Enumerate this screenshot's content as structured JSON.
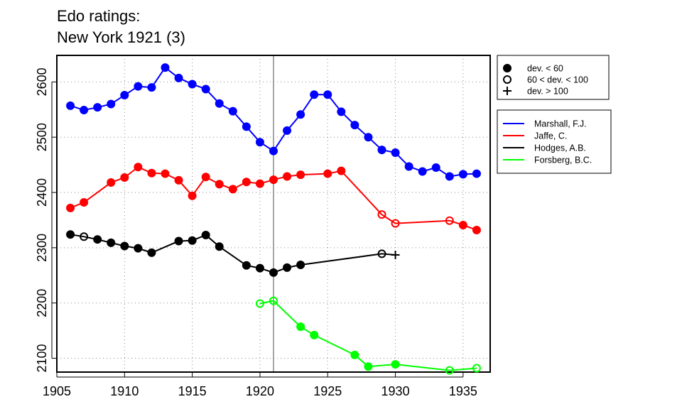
{
  "chart_data": {
    "type": "line",
    "title_line1": "Edo ratings:",
    "title_line2": "New York 1921 (3)",
    "xlabel": "",
    "ylabel": "",
    "xlim": [
      1905,
      1937
    ],
    "ylim": [
      2075,
      2648
    ],
    "x_ticks": [
      1905,
      1910,
      1915,
      1920,
      1925,
      1930,
      1935
    ],
    "y_ticks": [
      2100,
      2200,
      2300,
      2400,
      2500,
      2600
    ],
    "grid": "dotted",
    "reference_line_x": 1921,
    "marker_legend": [
      {
        "marker": "filled",
        "label": "dev. < 60"
      },
      {
        "marker": "open",
        "label": "60 < dev. < 100"
      },
      {
        "marker": "plus",
        "label": "dev. > 100"
      }
    ],
    "series": [
      {
        "name": "Marshall, F.J.",
        "color": "#0000ff",
        "points": [
          {
            "x": 1906,
            "y": 2557,
            "m": "filled"
          },
          {
            "x": 1907,
            "y": 2549,
            "m": "filled"
          },
          {
            "x": 1908,
            "y": 2554,
            "m": "filled"
          },
          {
            "x": 1909,
            "y": 2560,
            "m": "filled"
          },
          {
            "x": 1910,
            "y": 2576,
            "m": "filled"
          },
          {
            "x": 1911,
            "y": 2592,
            "m": "filled"
          },
          {
            "x": 1912,
            "y": 2590,
            "m": "filled"
          },
          {
            "x": 1913,
            "y": 2626,
            "m": "filled"
          },
          {
            "x": 1914,
            "y": 2607,
            "m": "filled"
          },
          {
            "x": 1915,
            "y": 2596,
            "m": "filled"
          },
          {
            "x": 1916,
            "y": 2587,
            "m": "filled"
          },
          {
            "x": 1917,
            "y": 2561,
            "m": "filled"
          },
          {
            "x": 1918,
            "y": 2547,
            "m": "filled"
          },
          {
            "x": 1919,
            "y": 2519,
            "m": "filled"
          },
          {
            "x": 1920,
            "y": 2491,
            "m": "filled"
          },
          {
            "x": 1921,
            "y": 2475,
            "m": "filled"
          },
          {
            "x": 1922,
            "y": 2512,
            "m": "filled"
          },
          {
            "x": 1923,
            "y": 2541,
            "m": "filled"
          },
          {
            "x": 1924,
            "y": 2577,
            "m": "filled"
          },
          {
            "x": 1925,
            "y": 2577,
            "m": "filled"
          },
          {
            "x": 1926,
            "y": 2546,
            "m": "filled"
          },
          {
            "x": 1927,
            "y": 2522,
            "m": "filled"
          },
          {
            "x": 1928,
            "y": 2500,
            "m": "filled"
          },
          {
            "x": 1929,
            "y": 2477,
            "m": "filled"
          },
          {
            "x": 1930,
            "y": 2472,
            "m": "filled"
          },
          {
            "x": 1931,
            "y": 2447,
            "m": "filled"
          },
          {
            "x": 1932,
            "y": 2438,
            "m": "filled"
          },
          {
            "x": 1933,
            "y": 2445,
            "m": "filled"
          },
          {
            "x": 1934,
            "y": 2429,
            "m": "filled"
          },
          {
            "x": 1935,
            "y": 2433,
            "m": "filled"
          },
          {
            "x": 1936,
            "y": 2434,
            "m": "filled"
          }
        ]
      },
      {
        "name": "Jaffe, C.",
        "color": "#ff0000",
        "points": [
          {
            "x": 1906,
            "y": 2372,
            "m": "filled"
          },
          {
            "x": 1907,
            "y": 2382,
            "m": "filled"
          },
          {
            "x": 1909,
            "y": 2418,
            "m": "filled"
          },
          {
            "x": 1910,
            "y": 2427,
            "m": "filled"
          },
          {
            "x": 1911,
            "y": 2446,
            "m": "filled"
          },
          {
            "x": 1912,
            "y": 2435,
            "m": "filled"
          },
          {
            "x": 1913,
            "y": 2434,
            "m": "filled"
          },
          {
            "x": 1914,
            "y": 2422,
            "m": "filled"
          },
          {
            "x": 1915,
            "y": 2394,
            "m": "filled"
          },
          {
            "x": 1916,
            "y": 2428,
            "m": "filled"
          },
          {
            "x": 1917,
            "y": 2415,
            "m": "filled"
          },
          {
            "x": 1918,
            "y": 2406,
            "m": "filled"
          },
          {
            "x": 1919,
            "y": 2419,
            "m": "filled"
          },
          {
            "x": 1920,
            "y": 2416,
            "m": "filled"
          },
          {
            "x": 1921,
            "y": 2423,
            "m": "filled"
          },
          {
            "x": 1922,
            "y": 2429,
            "m": "filled"
          },
          {
            "x": 1923,
            "y": 2432,
            "m": "filled"
          },
          {
            "x": 1925,
            "y": 2434,
            "m": "filled"
          },
          {
            "x": 1926,
            "y": 2439,
            "m": "filled"
          },
          {
            "x": 1929,
            "y": 2360,
            "m": "open"
          },
          {
            "x": 1930,
            "y": 2344,
            "m": "open"
          },
          {
            "x": 1934,
            "y": 2349,
            "m": "open"
          },
          {
            "x": 1935,
            "y": 2341,
            "m": "filled"
          },
          {
            "x": 1936,
            "y": 2332,
            "m": "filled"
          }
        ]
      },
      {
        "name": "Hodges, A.B.",
        "color": "#000000",
        "points": [
          {
            "x": 1906,
            "y": 2324,
            "m": "filled"
          },
          {
            "x": 1907,
            "y": 2320,
            "m": "open"
          },
          {
            "x": 1908,
            "y": 2315,
            "m": "filled"
          },
          {
            "x": 1909,
            "y": 2309,
            "m": "filled"
          },
          {
            "x": 1910,
            "y": 2303,
            "m": "filled"
          },
          {
            "x": 1911,
            "y": 2299,
            "m": "filled"
          },
          {
            "x": 1912,
            "y": 2291,
            "m": "filled"
          },
          {
            "x": 1914,
            "y": 2312,
            "m": "filled"
          },
          {
            "x": 1915,
            "y": 2313,
            "m": "filled"
          },
          {
            "x": 1916,
            "y": 2323,
            "m": "filled"
          },
          {
            "x": 1917,
            "y": 2302,
            "m": "filled"
          },
          {
            "x": 1919,
            "y": 2268,
            "m": "filled"
          },
          {
            "x": 1920,
            "y": 2263,
            "m": "filled"
          },
          {
            "x": 1921,
            "y": 2255,
            "m": "filled"
          },
          {
            "x": 1922,
            "y": 2264,
            "m": "filled"
          },
          {
            "x": 1923,
            "y": 2269,
            "m": "filled"
          },
          {
            "x": 1929,
            "y": 2289,
            "m": "open"
          },
          {
            "x": 1930,
            "y": 2287,
            "m": "plus"
          }
        ]
      },
      {
        "name": "Forsberg, B.C.",
        "color": "#00ff00",
        "points": [
          {
            "x": 1920,
            "y": 2199,
            "m": "open"
          },
          {
            "x": 1921,
            "y": 2204,
            "m": "open"
          },
          {
            "x": 1923,
            "y": 2157,
            "m": "filled"
          },
          {
            "x": 1924,
            "y": 2142,
            "m": "filled"
          },
          {
            "x": 1927,
            "y": 2106,
            "m": "filled"
          },
          {
            "x": 1928,
            "y": 2085,
            "m": "filled"
          },
          {
            "x": 1930,
            "y": 2089,
            "m": "filled"
          },
          {
            "x": 1934,
            "y": 2078,
            "m": "open"
          },
          {
            "x": 1936,
            "y": 2082,
            "m": "open"
          }
        ]
      }
    ]
  }
}
